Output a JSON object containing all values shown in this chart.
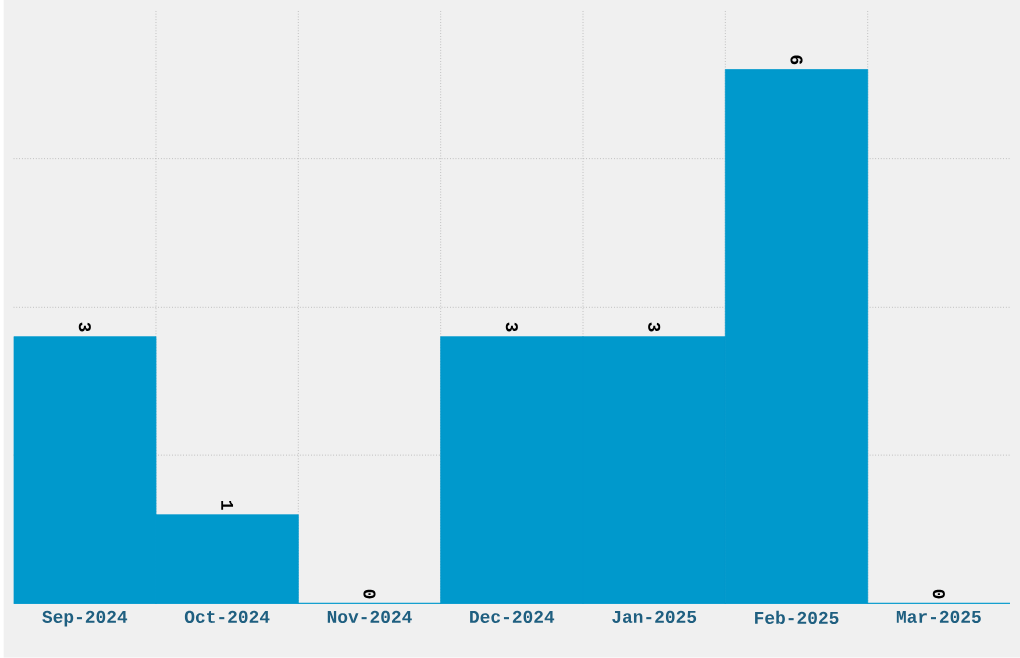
{
  "chart_data": {
    "type": "bar",
    "categories": [
      "Sep-2024",
      "Oct-2024",
      "Nov-2024",
      "Dec-2024",
      "Jan-2025",
      "Feb-2025",
      "Mar-2025"
    ],
    "values": [
      3,
      1,
      0,
      3,
      3,
      6,
      0
    ],
    "color": "#0099cc",
    "ylim": [
      0,
      6.67
    ],
    "yticks": [
      {
        "value": 1.67,
        "label": null
      },
      {
        "value": 3.33,
        "label": null
      },
      {
        "value": 5,
        "label": null
      }
    ],
    "tick_labels": "x",
    "grid": true,
    "data_labels": true
  }
}
